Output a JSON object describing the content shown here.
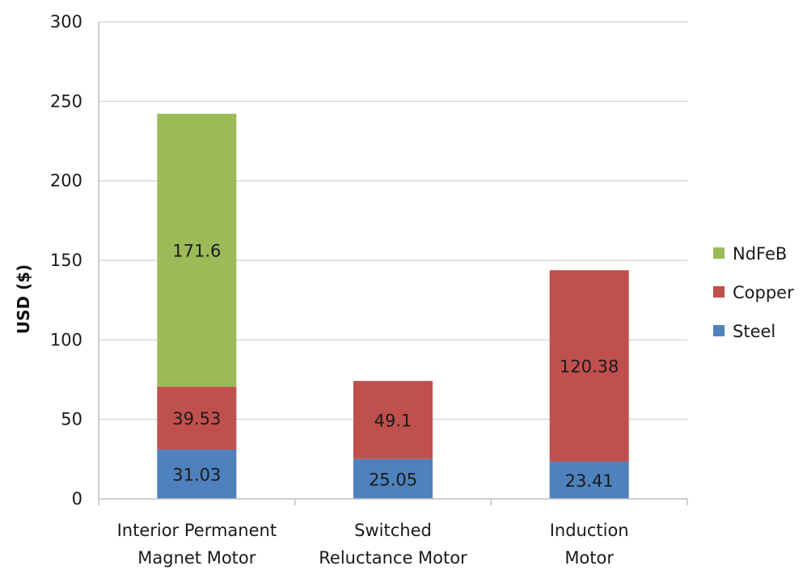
{
  "chart_data": {
    "type": "bar",
    "stacked": true,
    "title": "",
    "xlabel": "",
    "ylabel": "USD ($)",
    "ylim": [
      0,
      300
    ],
    "yticks": [
      0,
      50,
      100,
      150,
      200,
      250,
      300
    ],
    "grid": true,
    "legend_position": "right",
    "categories": [
      [
        "Interior Permanent",
        "Magnet Motor"
      ],
      [
        "Switched",
        "Reluctance Motor"
      ],
      [
        "Induction",
        "Motor"
      ]
    ],
    "series": [
      {
        "name": "Steel",
        "color": "#4f81bd",
        "values": [
          31.03,
          25.05,
          23.41
        ],
        "labels": [
          "31.03",
          "25.05",
          "23.41"
        ]
      },
      {
        "name": "Copper",
        "color": "#c0504d",
        "values": [
          39.53,
          49.1,
          120.38
        ],
        "labels": [
          "39.53",
          "49.1",
          "120.38"
        ]
      },
      {
        "name": "NdFeB",
        "color": "#9bbb59",
        "values": [
          171.6,
          0,
          0
        ],
        "labels": [
          "171.6",
          "",
          ""
        ]
      }
    ],
    "legend_order": [
      "NdFeB",
      "Copper",
      "Steel"
    ]
  }
}
